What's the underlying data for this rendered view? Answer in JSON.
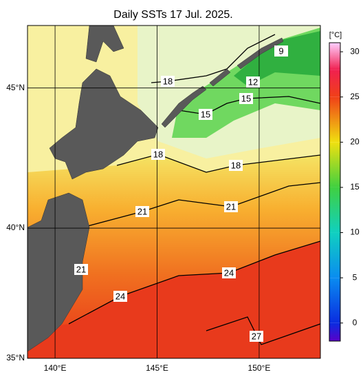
{
  "title": "Daily SSTs 17 Jul. 2025.",
  "map": {
    "lonlim": [
      138.65,
      153
    ],
    "latlim": [
      35,
      47.1
    ],
    "lon_ticks": [
      {
        "value": 140,
        "label": "140°E"
      },
      {
        "value": 145,
        "label": "145°E"
      },
      {
        "value": 150,
        "label": "150°E"
      }
    ],
    "lat_ticks": [
      {
        "value": 35,
        "label": "35°N"
      },
      {
        "value": 40,
        "label": "40°N"
      },
      {
        "value": 45,
        "label": "45°N"
      }
    ],
    "contour_labels": [
      9,
      12,
      15,
      15,
      18,
      18,
      18,
      21,
      21,
      21,
      24,
      24,
      27
    ]
  },
  "colorbar": {
    "unit": "[°C]",
    "lim": [
      -2,
      31
    ],
    "ticks": [
      0,
      5,
      10,
      15,
      20,
      25,
      30
    ],
    "colormap": [
      {
        "value": -2,
        "color": "#5a00c8"
      },
      {
        "value": 0,
        "color": "#0a2ce0"
      },
      {
        "value": 5,
        "color": "#0a8cf0"
      },
      {
        "value": 10,
        "color": "#10d0c0"
      },
      {
        "value": 15,
        "color": "#40d040"
      },
      {
        "value": 20,
        "color": "#f0e010"
      },
      {
        "value": 25,
        "color": "#f04018"
      },
      {
        "value": 28,
        "color": "#f02050"
      },
      {
        "value": 31,
        "color": "#ffd0ff"
      }
    ]
  }
}
